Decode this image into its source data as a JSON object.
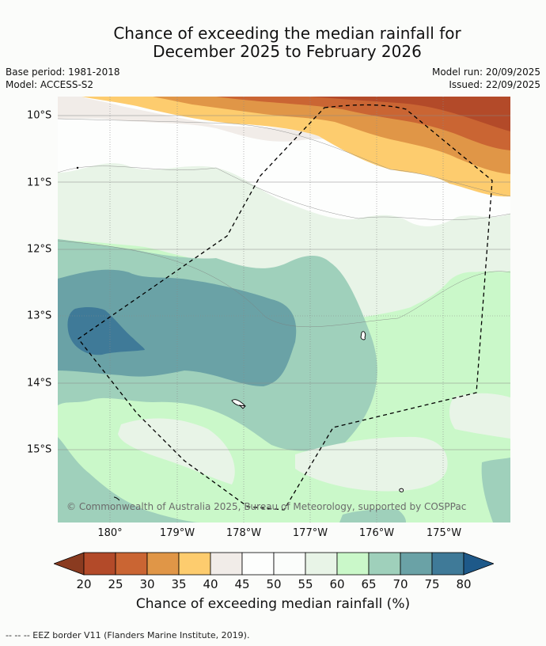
{
  "title": {
    "line1": "Chance of exceeding the median rainfall for",
    "line2": "December 2025 to February 2026"
  },
  "meta": {
    "base_period": "Base period: 1981-2018",
    "model": "Model: ACCESS-S2",
    "model_run": "Model run: 20/09/2025",
    "issued": "Issued: 22/09/2025"
  },
  "map": {
    "lat_labels": [
      "10°S",
      "11°S",
      "12°S",
      "13°S",
      "14°S",
      "15°S"
    ],
    "lon_labels": [
      "180°",
      "179°W",
      "178°W",
      "177°W",
      "176°W",
      "175°W"
    ],
    "credit": "© Commonwealth of Australia 2025, Bureau of Meteorology, supported by COSPPac",
    "features": [
      "fiji-islands",
      "eez-border",
      "rainfall-probability-contours"
    ]
  },
  "colorbar": {
    "ticks": [
      "20",
      "25",
      "30",
      "35",
      "40",
      "45",
      "50",
      "55",
      "60",
      "65",
      "70",
      "75",
      "80"
    ],
    "colors": [
      "#8a3b20",
      "#b34a29",
      "#ca6533",
      "#e09647",
      "#fdcc6e",
      "#f1ece8",
      "#fdfefd",
      "#fbfdfb",
      "#e8f4e7",
      "#caf8c9",
      "#9fd0bb",
      "#6aa2a6",
      "#3f7a98",
      "#1e5989"
    ],
    "label": "Chance of exceeding median rainfall (%)"
  },
  "footnote": "--  --  -- EEZ border V11 (Flanders Marine Institute, 2019)."
}
